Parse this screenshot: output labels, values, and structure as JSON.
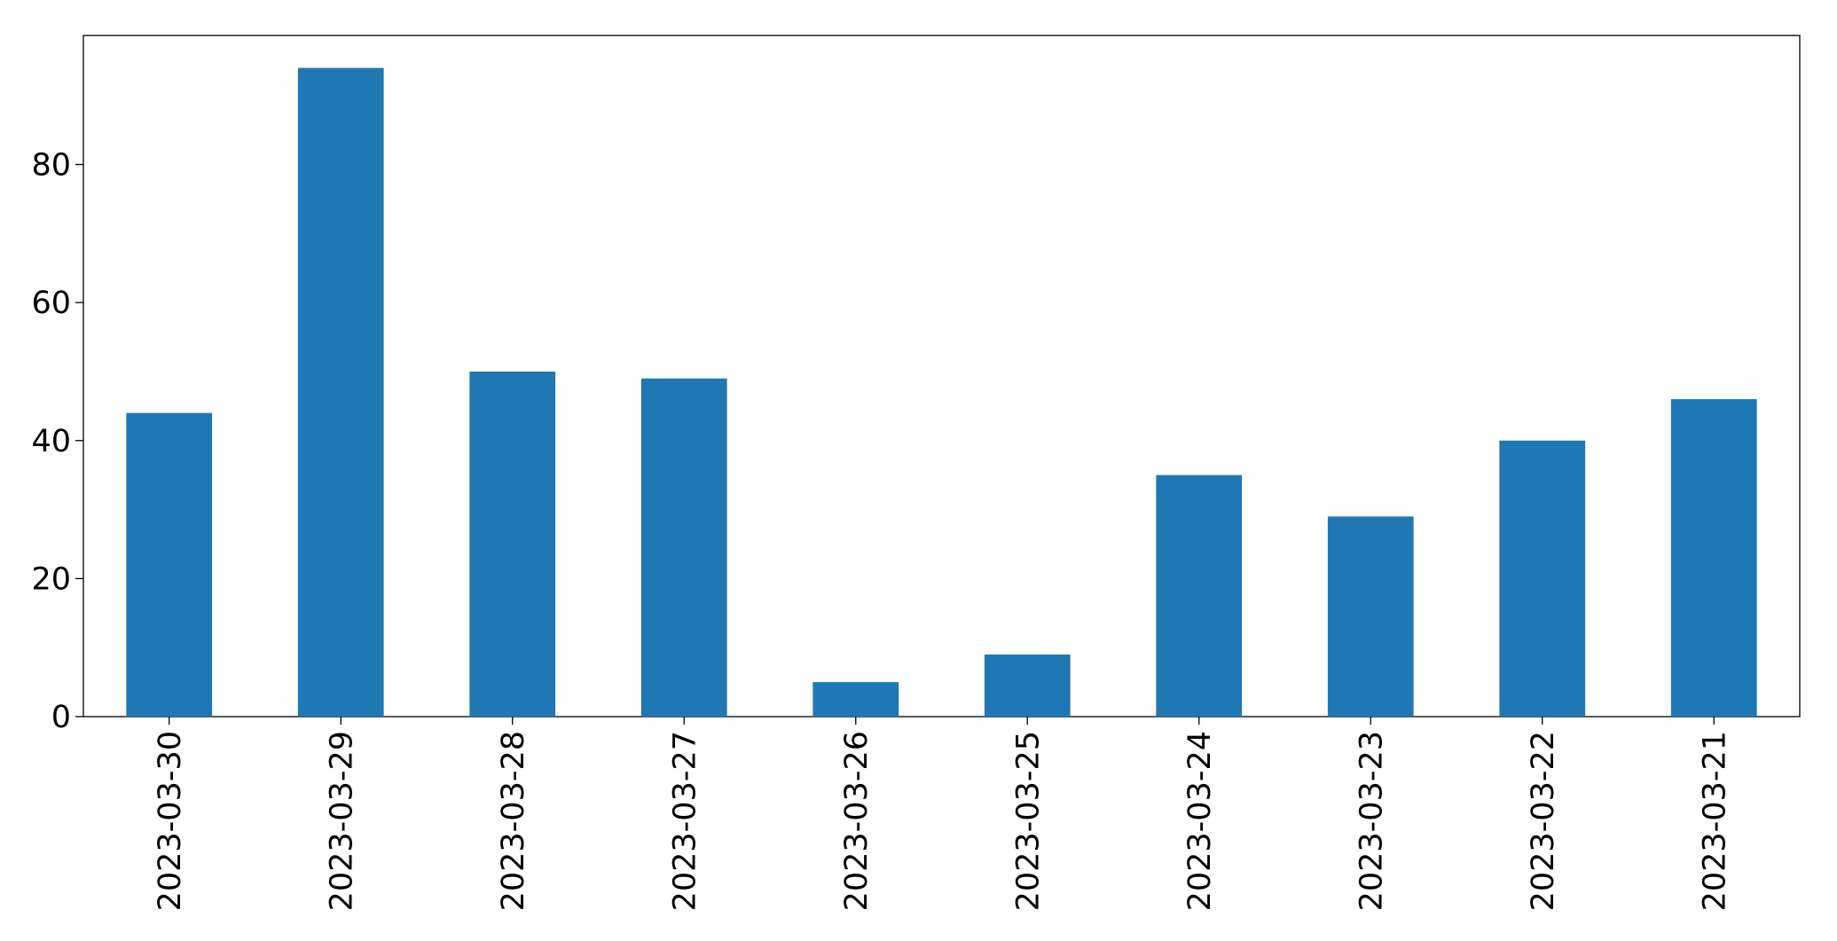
{
  "chart_data": {
    "type": "bar",
    "categories": [
      "2023-03-30",
      "2023-03-29",
      "2023-03-28",
      "2023-03-27",
      "2023-03-26",
      "2023-03-25",
      "2023-03-24",
      "2023-03-23",
      "2023-03-22",
      "2023-03-21"
    ],
    "values": [
      44,
      94,
      50,
      49,
      5,
      9,
      35,
      29,
      40,
      46
    ],
    "color": "#1f77b4",
    "ylim": [
      0,
      98.7
    ],
    "yticks": [
      0,
      20,
      40,
      60,
      80
    ],
    "grid": false
  }
}
